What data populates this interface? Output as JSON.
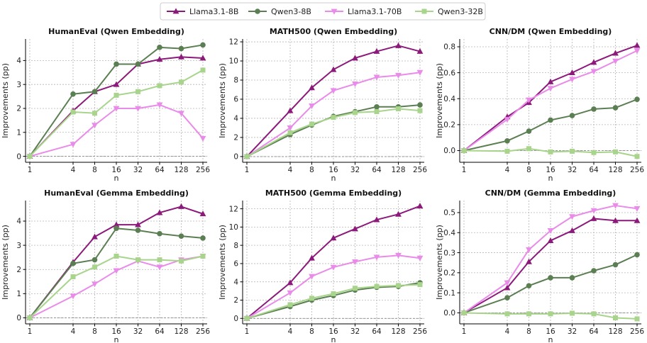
{
  "legend": {
    "items": [
      {
        "name": "Llama3.1-8B",
        "color": "#8B1A7A",
        "marker": "triangle-up"
      },
      {
        "name": "Qwen3-8B",
        "color": "#5B7F52",
        "marker": "circle"
      },
      {
        "name": "Llama3.1-70B",
        "color": "#E98BE9",
        "marker": "triangle-down"
      },
      {
        "name": "Qwen3-32B",
        "color": "#A8D48C",
        "marker": "square"
      }
    ]
  },
  "chart_data": [
    {
      "type": "line",
      "title": "HumanEval (Qwen Embedding)",
      "xlabel": "n",
      "ylabel": "Improvements (pp)",
      "x": [
        1,
        4,
        8,
        16,
        32,
        64,
        128,
        256
      ],
      "x_scale": "log2",
      "ylim": [
        -0.25,
        4.9
      ],
      "yticks": [
        0,
        1,
        2,
        3,
        4
      ],
      "ytick_labels": [
        "0",
        "1",
        "2",
        "3",
        "4"
      ],
      "grid": true,
      "series": [
        {
          "name": "Llama3.1-8B",
          "values": [
            0,
            1.9,
            2.7,
            3.0,
            3.85,
            4.05,
            4.15,
            4.1
          ]
        },
        {
          "name": "Qwen3-8B",
          "values": [
            0,
            2.6,
            2.7,
            3.85,
            3.85,
            4.55,
            4.5,
            4.65
          ]
        },
        {
          "name": "Llama3.1-70B",
          "values": [
            0,
            0.5,
            1.3,
            2.0,
            2.0,
            2.15,
            1.8,
            0.75
          ]
        },
        {
          "name": "Qwen3-32B",
          "values": [
            0,
            1.85,
            1.8,
            2.55,
            2.7,
            2.95,
            3.1,
            3.6
          ]
        }
      ]
    },
    {
      "type": "line",
      "title": "MATH500 (Qwen Embedding)",
      "xlabel": "n",
      "ylabel": "Improvements (pp)",
      "x": [
        1,
        4,
        8,
        16,
        32,
        64,
        128,
        256
      ],
      "x_scale": "log2",
      "ylim": [
        -0.6,
        12.3
      ],
      "yticks": [
        0,
        2,
        4,
        6,
        8,
        10,
        12
      ],
      "ytick_labels": [
        "0",
        "2",
        "4",
        "6",
        "8",
        "10",
        "12"
      ],
      "grid": true,
      "series": [
        {
          "name": "Llama3.1-8B",
          "values": [
            0,
            4.8,
            7.2,
            9.1,
            10.3,
            11.0,
            11.6,
            11.0
          ]
        },
        {
          "name": "Qwen3-8B",
          "values": [
            0,
            2.3,
            3.3,
            4.2,
            4.7,
            5.2,
            5.2,
            5.4
          ]
        },
        {
          "name": "Llama3.1-70B",
          "values": [
            0,
            3.0,
            5.3,
            6.9,
            7.6,
            8.3,
            8.5,
            8.8
          ]
        },
        {
          "name": "Qwen3-32B",
          "values": [
            0,
            2.5,
            3.4,
            4.1,
            4.6,
            4.7,
            5.0,
            4.8
          ]
        }
      ]
    },
    {
      "type": "line",
      "title": "CNN/DM (Qwen Embedding)",
      "xlabel": "n",
      "ylabel": "Improvements (pp)",
      "x": [
        1,
        4,
        8,
        16,
        32,
        64,
        128,
        256
      ],
      "x_scale": "log2",
      "ylim": [
        -0.09,
        0.86
      ],
      "yticks": [
        0.0,
        0.2,
        0.4,
        0.6,
        0.8
      ],
      "ytick_labels": [
        "0.0",
        "0.2",
        "0.4",
        "0.6",
        "0.8"
      ],
      "grid": true,
      "series": [
        {
          "name": "Llama3.1-8B",
          "values": [
            0,
            0.26,
            0.37,
            0.53,
            0.6,
            0.68,
            0.75,
            0.81
          ]
        },
        {
          "name": "Qwen3-8B",
          "values": [
            0,
            0.075,
            0.15,
            0.235,
            0.27,
            0.32,
            0.33,
            0.395
          ]
        },
        {
          "name": "Llama3.1-70B",
          "values": [
            0,
            0.24,
            0.39,
            0.48,
            0.55,
            0.61,
            0.69,
            0.77
          ]
        },
        {
          "name": "Qwen3-32B",
          "values": [
            0,
            -0.005,
            0.015,
            -0.01,
            -0.005,
            -0.015,
            -0.01,
            -0.045
          ]
        }
      ]
    },
    {
      "type": "line",
      "title": "HumanEval (Gemma Embedding)",
      "xlabel": "n",
      "ylabel": "Improvements (pp)",
      "x": [
        1,
        4,
        8,
        16,
        32,
        64,
        128,
        256
      ],
      "x_scale": "log2",
      "ylim": [
        -0.25,
        4.85
      ],
      "yticks": [
        0,
        1,
        2,
        3,
        4
      ],
      "ytick_labels": [
        "0",
        "1",
        "2",
        "3",
        "4"
      ],
      "grid": true,
      "series": [
        {
          "name": "Llama3.1-8B",
          "values": [
            0,
            2.3,
            3.35,
            3.85,
            3.85,
            4.35,
            4.6,
            4.3
          ]
        },
        {
          "name": "Qwen3-8B",
          "values": [
            0,
            2.25,
            2.4,
            3.7,
            3.62,
            3.48,
            3.38,
            3.3
          ]
        },
        {
          "name": "Llama3.1-70B",
          "values": [
            0,
            0.9,
            1.4,
            1.95,
            2.35,
            2.1,
            2.4,
            2.55
          ]
        },
        {
          "name": "Qwen3-32B",
          "values": [
            0,
            1.7,
            2.1,
            2.55,
            2.4,
            2.4,
            2.35,
            2.55
          ]
        }
      ]
    },
    {
      "type": "line",
      "title": "MATH500 (Gemma Embedding)",
      "xlabel": "n",
      "ylabel": "Improvements (pp)",
      "x": [
        1,
        4,
        8,
        16,
        32,
        64,
        128,
        256
      ],
      "x_scale": "log2",
      "ylim": [
        -0.6,
        12.9
      ],
      "yticks": [
        0,
        2,
        4,
        6,
        8,
        10,
        12
      ],
      "ytick_labels": [
        "0",
        "2",
        "4",
        "6",
        "8",
        "10",
        "12"
      ],
      "grid": true,
      "series": [
        {
          "name": "Llama3.1-8B",
          "values": [
            0,
            3.9,
            6.6,
            8.8,
            9.8,
            10.8,
            11.4,
            12.3
          ]
        },
        {
          "name": "Qwen3-8B",
          "values": [
            0,
            1.3,
            2.0,
            2.5,
            3.1,
            3.4,
            3.5,
            3.9
          ]
        },
        {
          "name": "Llama3.1-70B",
          "values": [
            0,
            2.8,
            4.6,
            5.6,
            6.2,
            6.7,
            6.9,
            6.6
          ]
        },
        {
          "name": "Qwen3-32B",
          "values": [
            0,
            1.5,
            2.2,
            2.7,
            3.3,
            3.5,
            3.6,
            3.7
          ]
        }
      ]
    },
    {
      "type": "line",
      "title": "CNN/DM (Gemma Embedding)",
      "xlabel": "n",
      "ylabel": "Improvements (pp)",
      "x": [
        1,
        4,
        8,
        16,
        32,
        64,
        128,
        256
      ],
      "x_scale": "log2",
      "ylim": [
        -0.055,
        0.56
      ],
      "yticks": [
        0.0,
        0.1,
        0.2,
        0.3,
        0.4,
        0.5
      ],
      "ytick_labels": [
        "0.0",
        "0.1",
        "0.2",
        "0.3",
        "0.4",
        "0.5"
      ],
      "grid": true,
      "series": [
        {
          "name": "Llama3.1-8B",
          "values": [
            0,
            0.125,
            0.255,
            0.36,
            0.41,
            0.47,
            0.46,
            0.46
          ]
        },
        {
          "name": "Qwen3-8B",
          "values": [
            0,
            0.075,
            0.135,
            0.175,
            0.175,
            0.21,
            0.24,
            0.29
          ]
        },
        {
          "name": "Llama3.1-70B",
          "values": [
            0,
            0.15,
            0.315,
            0.41,
            0.48,
            0.51,
            0.535,
            0.52
          ]
        },
        {
          "name": "Qwen3-32B",
          "values": [
            0,
            -0.005,
            -0.005,
            -0.005,
            -0.002,
            -0.005,
            -0.025,
            -0.03
          ]
        }
      ]
    }
  ]
}
